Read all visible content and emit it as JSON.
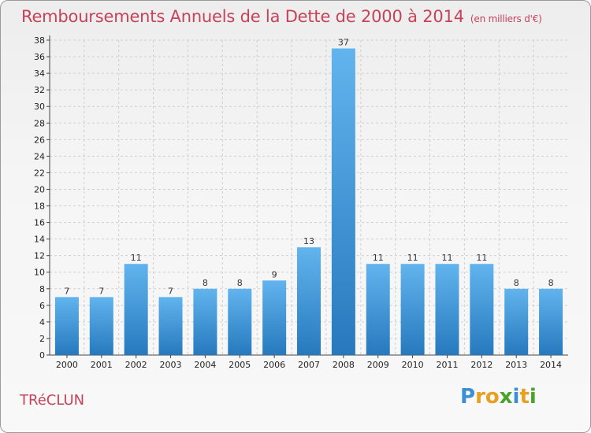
{
  "header": {
    "title": "Remboursements Annuels de la Dette de 2000 à 2014",
    "unit": "(en milliers d'€)"
  },
  "footer": {
    "commune": "TRéCLUN",
    "logo_text": "Proxiti"
  },
  "colors": {
    "title": "#c4435a",
    "bar_top": "#62b4ee",
    "bar_bottom": "#2679bd",
    "logo": [
      "#3a8fd6",
      "#e8a020",
      "#e8a020",
      "#4aa32a",
      "#3a8fd6",
      "#e8a020",
      "#4aa32a"
    ]
  },
  "chart_data": {
    "type": "bar",
    "title": "Remboursements Annuels de la Dette de 2000 à 2014",
    "ylabel": "en milliers d'€",
    "xlabel": "",
    "categories": [
      "2000",
      "2001",
      "2002",
      "2003",
      "2004",
      "2005",
      "2006",
      "2007",
      "2008",
      "2009",
      "2010",
      "2011",
      "2012",
      "2013",
      "2014"
    ],
    "values": [
      7,
      7,
      11,
      7,
      8,
      8,
      9,
      13,
      37,
      11,
      11,
      11,
      11,
      8,
      8
    ],
    "ylim": [
      0,
      38
    ],
    "yticks": [
      0,
      2,
      4,
      6,
      8,
      10,
      12,
      14,
      16,
      18,
      20,
      22,
      24,
      26,
      28,
      30,
      32,
      34,
      36,
      38
    ],
    "grid": true
  }
}
